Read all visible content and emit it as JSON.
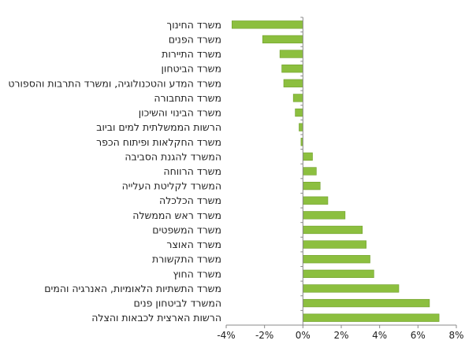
{
  "chart_data": {
    "type": "bar",
    "orientation": "horizontal",
    "categories": [
      "משרד החינוך",
      "משרד הפנים",
      "משרד התיירות",
      "משרד הביטחון",
      "משרד המדע והטכנולוגיה, ומשרד התרבות והספורט",
      "משרד התחבורה",
      "משרד הבינוי והשיכון",
      "הרשות הממשלתית למים וביוב",
      "משרד החקלאות ופיתוח הכפר",
      "המשרד להגנת הסביבה",
      "משרד הרווחה",
      "המשרד לקליטת העלייה",
      "משרד הכלכלה",
      "משרד ראש הממשלה",
      "משרד המשפטים",
      "משרד האוצר",
      "משרד התקשורת",
      "משרד החוץ",
      "משרד התשתיות הלאומיות, האנרגיה והמים",
      "המשרד לביטחון פנים",
      "הרשות הארצית לכבאות והצלה"
    ],
    "values": [
      -3.7,
      -2.1,
      -1.2,
      -1.1,
      -1.0,
      -0.5,
      -0.4,
      -0.2,
      -0.1,
      0.5,
      0.7,
      0.9,
      1.3,
      2.2,
      3.1,
      3.3,
      3.5,
      3.7,
      5.0,
      6.6,
      7.1
    ],
    "xlim": [
      -4,
      8
    ],
    "x_ticks": [
      "-4%",
      "-2%",
      "0%",
      "2%",
      "4%",
      "6%",
      "8%"
    ],
    "x_tick_values": [
      -4,
      -2,
      0,
      2,
      4,
      6,
      8
    ],
    "bar_color": "#8CBF3F",
    "bar_edge_color": "#6F9E2A",
    "title": "",
    "xlabel": "",
    "ylabel": "",
    "grid": false,
    "legend": "none"
  }
}
